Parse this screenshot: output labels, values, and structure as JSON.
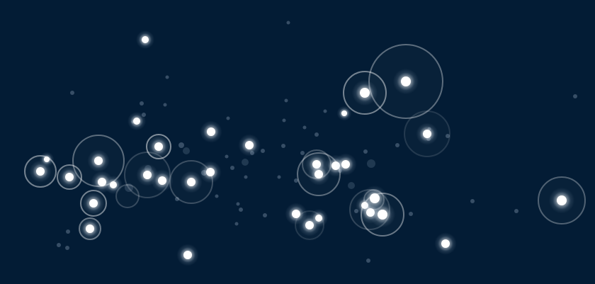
{
  "scene": {
    "background_color": "#031c35",
    "light_color": "#ffffff",
    "dust_color": "#5a7087",
    "ring_color": "#ffffff"
  }
}
